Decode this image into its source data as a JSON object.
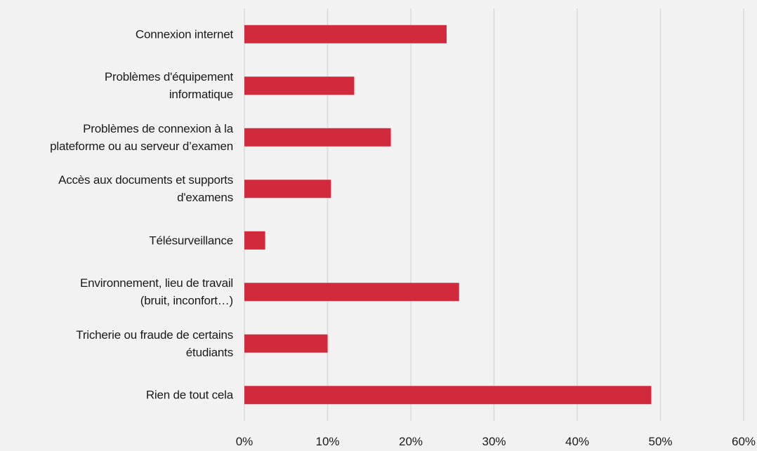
{
  "chart_data": {
    "type": "barh",
    "categories": [
      "Connexion internet",
      "Problèmes d'équipement \ninformatique",
      "Problèmes de connexion à la\nplateforme ou au serveur d’examen",
      "Accès aux documents et supports\nd'examens",
      "Télésurveillance",
      "Environnement, lieu de travail\n(bruit, inconfort…)",
      "Tricherie ou fraude de certains\nétudiants",
      "Rien de tout cela"
    ],
    "values": [
      24.3,
      13.2,
      17.6,
      10.4,
      2.5,
      25.8,
      10.0,
      48.9
    ],
    "color": "#d12a3c",
    "xlim": [
      0,
      60
    ],
    "xticks": [
      {
        "value": 0,
        "label": "0%"
      },
      {
        "value": 10,
        "label": "10%"
      },
      {
        "value": 20,
        "label": "20%"
      },
      {
        "value": 30,
        "label": "30%"
      },
      {
        "value": 40,
        "label": "40%"
      },
      {
        "value": 50,
        "label": "50%"
      },
      {
        "value": 60,
        "label": "60%"
      }
    ],
    "grid": true
  }
}
